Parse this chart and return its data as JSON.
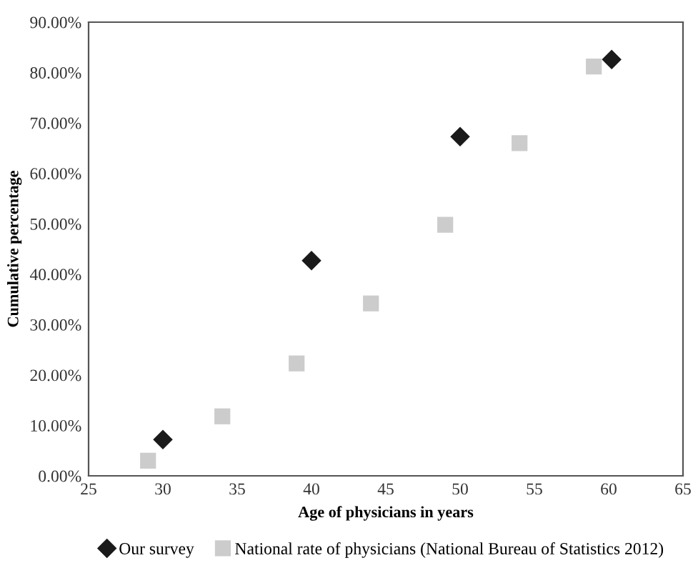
{
  "chart_data": {
    "type": "scatter",
    "xlabel": "Age of physicians in years",
    "ylabel": "Cumulative percentage",
    "xlim": [
      25,
      65
    ],
    "xticks": [
      25,
      30,
      35,
      40,
      45,
      50,
      55,
      60,
      65
    ],
    "ylim": [
      0,
      90
    ],
    "yticks": [
      {
        "value": 0,
        "label": "0.00%"
      },
      {
        "value": 10,
        "label": "10.00%"
      },
      {
        "value": 20,
        "label": "20.00%"
      },
      {
        "value": 30,
        "label": "30.00%"
      },
      {
        "value": 40,
        "label": "40.00%"
      },
      {
        "value": 50,
        "label": "50.00%"
      },
      {
        "value": 60,
        "label": "60.00%"
      },
      {
        "value": 70,
        "label": "70.00%"
      },
      {
        "value": 80,
        "label": "80.00%"
      },
      {
        "value": 90,
        "label": "90.00%"
      }
    ],
    "grid": false,
    "legend": "bottom",
    "series": [
      {
        "name": "Our survey",
        "color": "#1a1a1a",
        "marker": "diamond",
        "x": [
          30,
          40,
          50,
          60.2
        ],
        "values": [
          7.2,
          42.7,
          67.3,
          82.6
        ]
      },
      {
        "name": "National rate of physicians (National Bureau of Statistics 2012)",
        "color": "#cccccc",
        "marker": "square",
        "x": [
          29,
          34,
          39,
          44,
          49,
          54,
          59
        ],
        "values": [
          3,
          11.8,
          22.3,
          34.2,
          49.8,
          66,
          81.2
        ]
      }
    ]
  }
}
